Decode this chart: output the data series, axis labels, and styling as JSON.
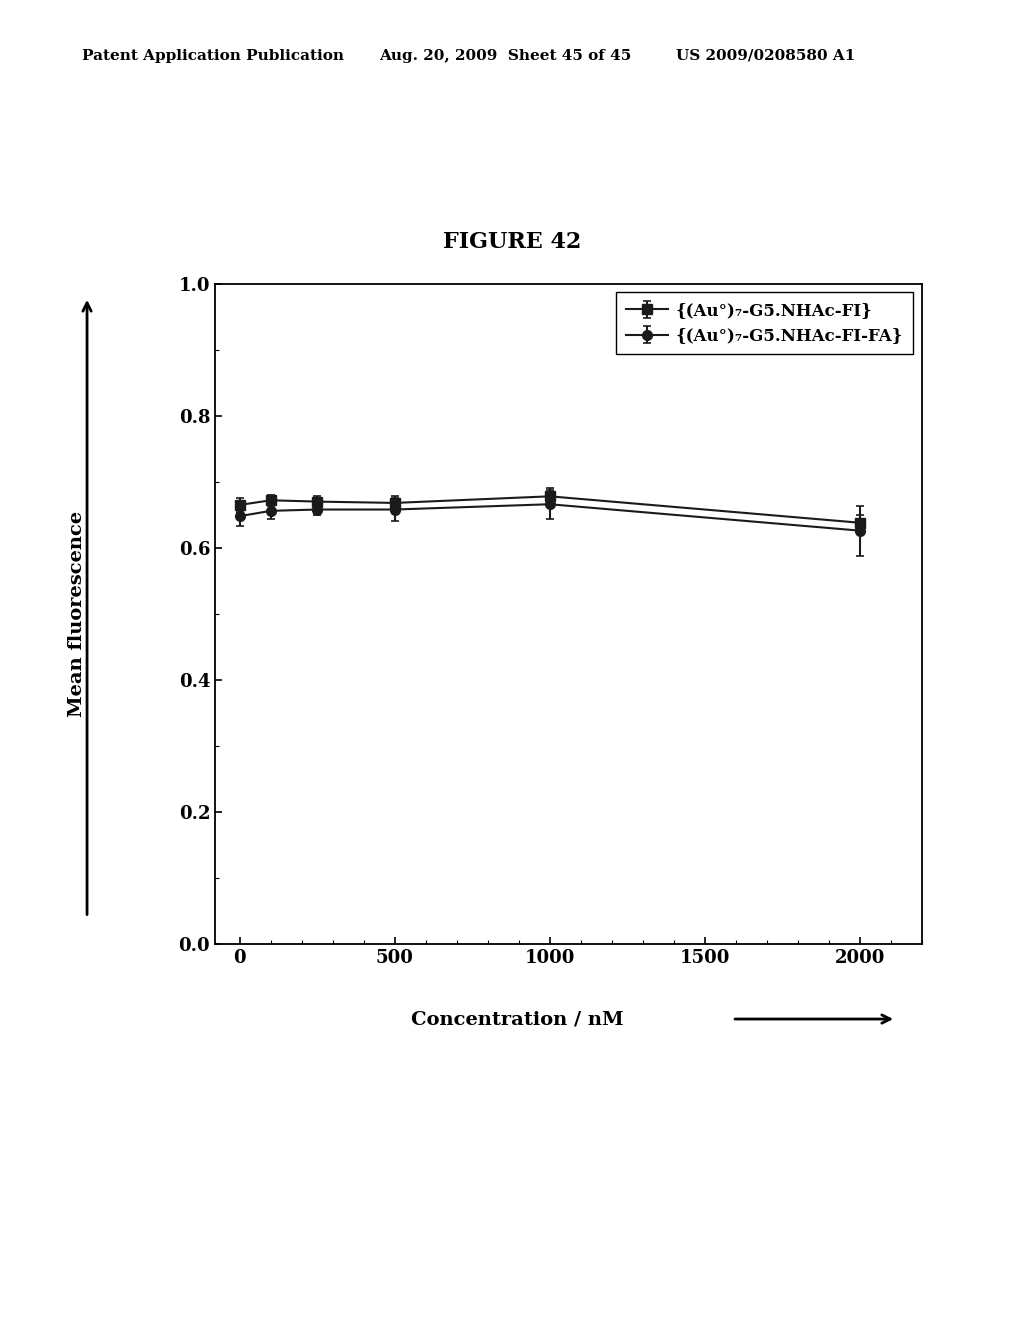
{
  "title": "FIGURE 42",
  "header_left": "Patent Application Publication",
  "header_mid": "Aug. 20, 2009  Sheet 45 of 45",
  "header_right": "US 2009/0208580 A1",
  "xlabel": "Concentration / nM",
  "ylabel": "Mean fluorescence",
  "xlim": [
    -80,
    2200
  ],
  "ylim": [
    0.0,
    1.0
  ],
  "xticks": [
    0,
    500,
    1000,
    1500,
    2000
  ],
  "yticks": [
    0.0,
    0.2,
    0.4,
    0.6,
    0.8,
    1.0
  ],
  "series1_label": "{(Au°)₇-G5.NHAc-FI}",
  "series2_label": "{(Au°)₇-G5.NHAc-FI-FA}",
  "series1_x": [
    0,
    100,
    250,
    500,
    1000,
    2000
  ],
  "series1_y": [
    0.665,
    0.672,
    0.67,
    0.668,
    0.678,
    0.638
  ],
  "series1_yerr": [
    0.01,
    0.008,
    0.008,
    0.01,
    0.012,
    0.012
  ],
  "series2_x": [
    0,
    100,
    250,
    500,
    1000,
    2000
  ],
  "series2_y": [
    0.648,
    0.656,
    0.658,
    0.658,
    0.666,
    0.626
  ],
  "series2_yerr": [
    0.015,
    0.012,
    0.008,
    0.018,
    0.022,
    0.038
  ],
  "line_color": "#1a1a1a",
  "bg_color": "#ffffff"
}
